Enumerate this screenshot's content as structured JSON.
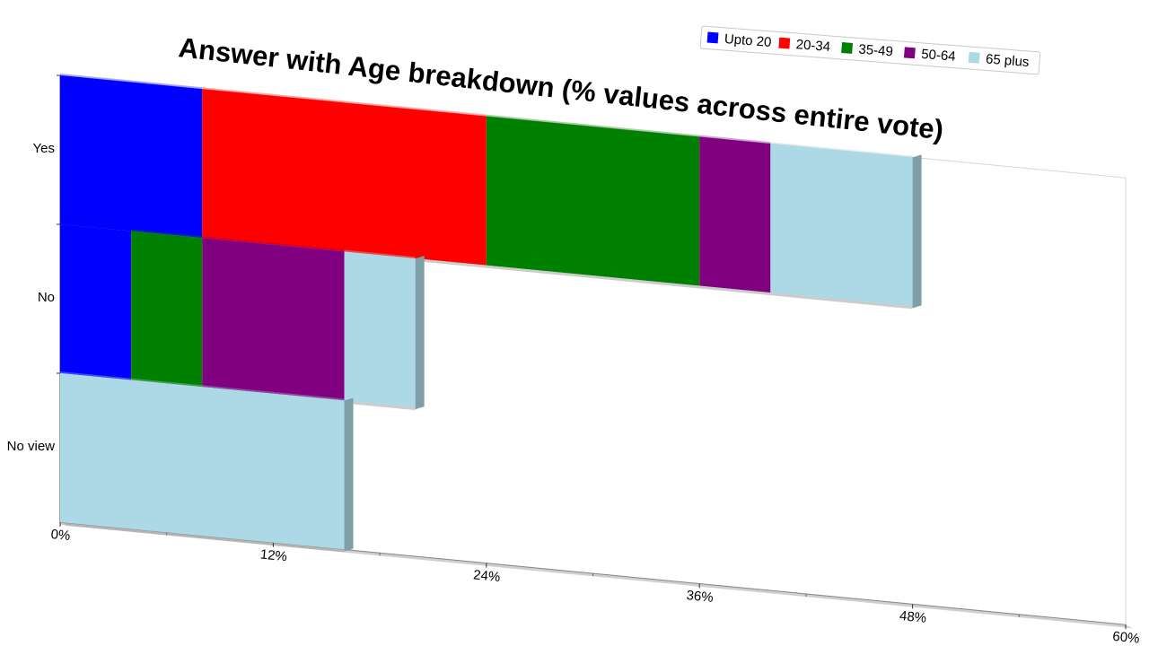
{
  "chart_data": {
    "type": "bar",
    "orientation": "horizontal",
    "stacked": true,
    "title": "Answer with Age breakdown (% values across entire vote)",
    "categories": [
      "Yes",
      "No",
      "No view"
    ],
    "x_ticks": [
      "0%",
      "12%",
      "24%",
      "36%",
      "48%",
      "60%"
    ],
    "xlim": [
      0,
      60
    ],
    "legend_position": "top-right",
    "series": [
      {
        "name": "Upto 20",
        "color": "#0000ff",
        "values": [
          8,
          4,
          0
        ]
      },
      {
        "name": "20-34",
        "color": "#ff0000",
        "values": [
          16,
          0,
          0
        ]
      },
      {
        "name": "35-49",
        "color": "#008000",
        "values": [
          12,
          4,
          0
        ]
      },
      {
        "name": "50-64",
        "color": "#800080",
        "values": [
          4,
          8,
          0
        ]
      },
      {
        "name": "65 plus",
        "color": "#add8e6",
        "values": [
          8,
          4,
          16
        ]
      }
    ]
  }
}
